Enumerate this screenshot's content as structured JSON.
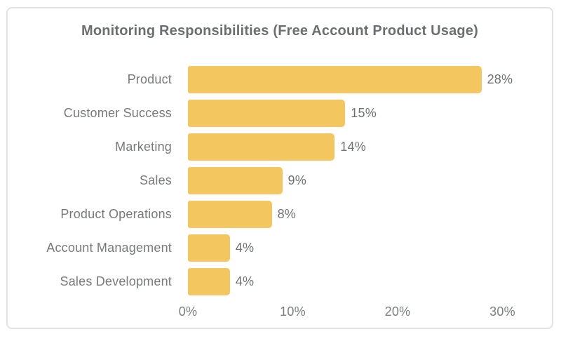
{
  "chart_data": {
    "type": "bar",
    "orientation": "horizontal",
    "title": "Monitoring Responsibilities (Free Account Product Usage)",
    "categories": [
      "Product",
      "Customer Success",
      "Marketing",
      "Sales",
      "Product Operations",
      "Account Management",
      "Sales Development"
    ],
    "values": [
      28,
      15,
      14,
      9,
      8,
      4,
      4
    ],
    "value_labels": [
      "28%",
      "15%",
      "14%",
      "9%",
      "8%",
      "4%",
      "4%"
    ],
    "x_ticks": [
      {
        "value": 0,
        "label": "0%"
      },
      {
        "value": 10,
        "label": "10%"
      },
      {
        "value": 20,
        "label": "20%"
      },
      {
        "value": 30,
        "label": "30%"
      }
    ],
    "xlim": [
      0,
      30
    ],
    "xlabel": "",
    "ylabel": "",
    "grid": false,
    "legend_position": "none",
    "colors": {
      "bar": "#f3c65f",
      "title_text": "#6b6e71",
      "category_text": "#77797c",
      "value_text": "#6f7275",
      "tick_text": "#7b7e81",
      "card_border": "#dee3e4",
      "background": "#ffffff"
    }
  }
}
